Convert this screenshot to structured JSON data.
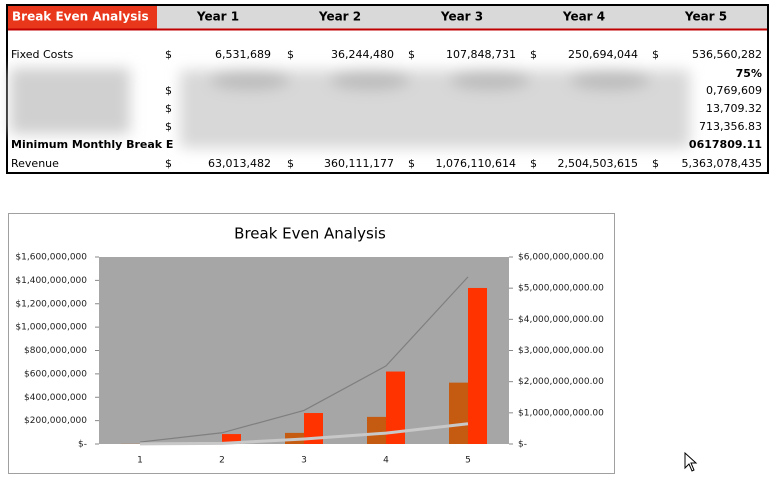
{
  "table": {
    "title": "Break Even Analysis",
    "columns": [
      "Year 1",
      "Year 2",
      "Year 3",
      "Year 4",
      "Year 5"
    ],
    "rows": [
      {
        "label": "Fixed Costs",
        "cells": [
          "$",
          "6,531,689",
          "$",
          "36,244,480",
          "$",
          "107,848,731",
          "$",
          "250,694,044",
          "$",
          "536,560,282"
        ]
      },
      {
        "label": null,
        "cells": [
          null,
          null,
          null,
          null,
          null,
          null,
          null,
          null,
          null,
          "75%"
        ]
      },
      {
        "label": null,
        "cells": [
          "$",
          null,
          null,
          null,
          null,
          null,
          null,
          null,
          null,
          "0,769,609"
        ]
      },
      {
        "label": null,
        "cells": [
          "$",
          null,
          null,
          null,
          null,
          null,
          null,
          null,
          null,
          "13,709.32"
        ]
      },
      {
        "label": null,
        "cells": [
          "$",
          null,
          null,
          null,
          null,
          null,
          null,
          null,
          null,
          "713,356.83"
        ]
      },
      {
        "label": "Minimum Monthly Break E",
        "cells": [
          null,
          null,
          null,
          null,
          null,
          null,
          null,
          null,
          null,
          "0617809.11"
        ]
      },
      {
        "label": "Revenue",
        "cells": [
          "$",
          "63,013,482",
          "$",
          "360,111,177",
          "$",
          "1,076,110,614",
          "$",
          "2,504,503,615",
          "$",
          "5,363,078,435"
        ]
      }
    ]
  },
  "chart_data": {
    "type": "bar",
    "title": "Break Even Analysis",
    "categories": [
      "1",
      "2",
      "3",
      "4",
      "5"
    ],
    "series": [
      {
        "type": "bar",
        "color": "#c55a11",
        "values": [
          1000000,
          15000000,
          95000000,
          232000000,
          525000000
        ]
      },
      {
        "type": "bar",
        "color": "#ff3300",
        "values": [
          3000000,
          85000000,
          265000000,
          620000000,
          1335000000
        ]
      },
      {
        "type": "line",
        "axis": "y2",
        "color": "#7f7f7f",
        "values": [
          63013482,
          360111177,
          1076110614,
          2504503615,
          5363078435
        ]
      },
      {
        "type": "line",
        "axis": "y2",
        "color": "#c8c8c8",
        "values": [
          5000000,
          20000000,
          160000000,
          350000000,
          650000000
        ]
      }
    ],
    "ylim": [
      0,
      1600000000
    ],
    "yticks": [
      {
        "value": 0,
        "label": "$-"
      },
      {
        "value": 200000000,
        "label": "$200,000,000"
      },
      {
        "value": 400000000,
        "label": "$400,000,000"
      },
      {
        "value": 600000000,
        "label": "$600,000,000"
      },
      {
        "value": 800000000,
        "label": "$800,000,000"
      },
      {
        "value": 1000000000,
        "label": "$1,000,000,000"
      },
      {
        "value": 1200000000,
        "label": "$1,200,000,000"
      },
      {
        "value": 1400000000,
        "label": "$1,400,000,000"
      },
      {
        "value": 1600000000,
        "label": "$1,600,000,000"
      }
    ],
    "y2lim": [
      0,
      6000000000
    ],
    "y2ticks": [
      {
        "value": 0,
        "label": "$-"
      },
      {
        "value": 1000000000,
        "label": "$1,000,000,000.00"
      },
      {
        "value": 2000000000,
        "label": "$2,000,000,000.00"
      },
      {
        "value": 3000000000,
        "label": "$3,000,000,000.00"
      },
      {
        "value": 4000000000,
        "label": "$4,000,000,000.00"
      },
      {
        "value": 5000000000,
        "label": "$5,000,000,000.00"
      },
      {
        "value": 6000000000,
        "label": "$6,000,000,000.00"
      }
    ]
  }
}
